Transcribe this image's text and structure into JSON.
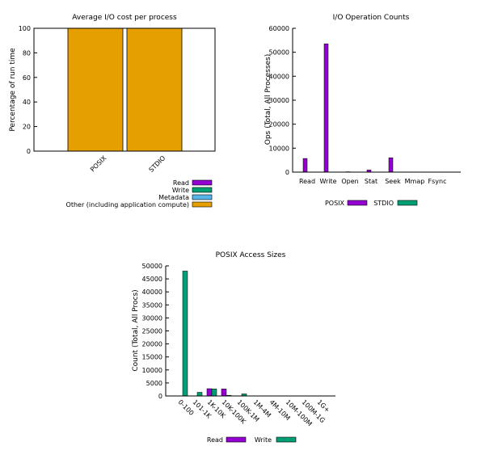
{
  "colors": {
    "read": "#9400d3",
    "write": "#009e73",
    "metadata": "#56b4e9",
    "other": "#e69f00"
  },
  "chart_data": [
    {
      "type": "bar",
      "title": "Average I/O cost per process",
      "ylabel": "Percentage of run time",
      "ylim": [
        0,
        100
      ],
      "yticks": [
        "0",
        "20",
        "40",
        "60",
        "80",
        "100"
      ],
      "categories": [
        "POSIX",
        "STDIO"
      ],
      "stacked": true,
      "series": [
        {
          "name": "Read",
          "values": [
            0,
            0
          ]
        },
        {
          "name": "Write",
          "values": [
            0,
            0
          ]
        },
        {
          "name": "Metadata",
          "values": [
            0,
            0
          ]
        },
        {
          "name": "Other (including application compute)",
          "values": [
            100,
            100
          ]
        }
      ],
      "legend": "bottom"
    },
    {
      "type": "bar",
      "title": "I/O Operation Counts",
      "ylabel": "Ops (Total, All Processes)",
      "ylim": [
        0,
        60000
      ],
      "yticks": [
        "0",
        "10000",
        "20000",
        "30000",
        "40000",
        "50000",
        "60000"
      ],
      "categories": [
        "Read",
        "Write",
        "Open",
        "Stat",
        "Seek",
        "Mmap",
        "Fsync"
      ],
      "series": [
        {
          "name": "POSIX",
          "values": [
            5700,
            53500,
            150,
            900,
            6000,
            0,
            0
          ]
        },
        {
          "name": "STDIO",
          "values": [
            0,
            0,
            0,
            0,
            0,
            0,
            0
          ]
        }
      ],
      "legend": "bottom"
    },
    {
      "type": "bar",
      "title": "POSIX Access Sizes",
      "ylabel": "Count (Total, All Procs)",
      "ylim": [
        0,
        50000
      ],
      "yticks": [
        "0",
        "5000",
        "10000",
        "15000",
        "20000",
        "25000",
        "30000",
        "35000",
        "40000",
        "45000",
        "50000"
      ],
      "categories": [
        "0-100",
        "101-1K",
        "1K-10K",
        "10K-100K",
        "100K-1M",
        "1M-4M",
        "4M-10M",
        "10M-100M",
        "100M-1G",
        "1G+"
      ],
      "series": [
        {
          "name": "Read",
          "values": [
            0,
            0,
            2800,
            2700,
            0,
            0,
            0,
            0,
            0,
            0
          ]
        },
        {
          "name": "Write",
          "values": [
            48000,
            1400,
            2700,
            250,
            800,
            0,
            0,
            0,
            0,
            0
          ]
        }
      ],
      "legend": "bottom"
    }
  ]
}
